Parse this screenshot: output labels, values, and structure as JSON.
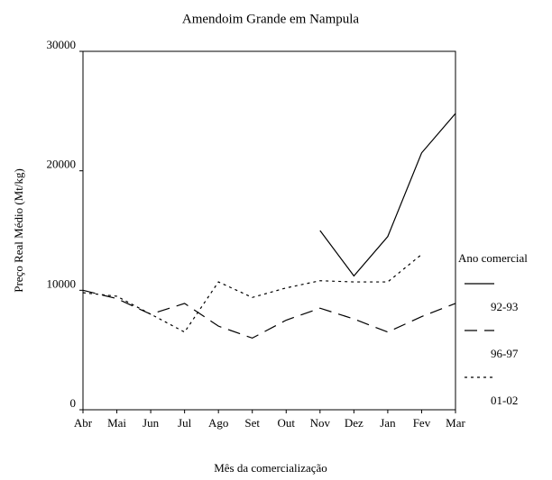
{
  "chart_data": {
    "type": "line",
    "title": "Amendoim Grande em Nampula",
    "x_label": "Mês da comercialização",
    "y_label": "Preço Real Médio (Mt/kg)",
    "legend_title": "Ano comercial",
    "categories": [
      "Abr",
      "Mai",
      "Jun",
      "Jul",
      "Ago",
      "Set",
      "Out",
      "Nov",
      "Dez",
      "Jan",
      "Fev",
      "Mar"
    ],
    "series": [
      {
        "name": "92-93",
        "color": "#000000",
        "dash": "solid",
        "values": [
          null,
          null,
          null,
          null,
          null,
          null,
          null,
          15000,
          11200,
          14500,
          21500,
          24800
        ]
      },
      {
        "name": "96-97",
        "color": "#000000",
        "dash": "long",
        "values": [
          10000,
          9300,
          8000,
          8900,
          7000,
          6000,
          7500,
          8500,
          7600,
          6500,
          7800,
          8900
        ]
      },
      {
        "name": "01-02",
        "color": "#000000",
        "dash": "dotted",
        "values": [
          9800,
          9500,
          8000,
          6500,
          10700,
          9400,
          10200,
          10800,
          10700,
          10700,
          13000,
          null
        ]
      }
    ],
    "ylim": [
      0,
      30000
    ],
    "yticks": [
      0,
      10000,
      20000,
      30000
    ],
    "grid": false,
    "legend": "right"
  }
}
